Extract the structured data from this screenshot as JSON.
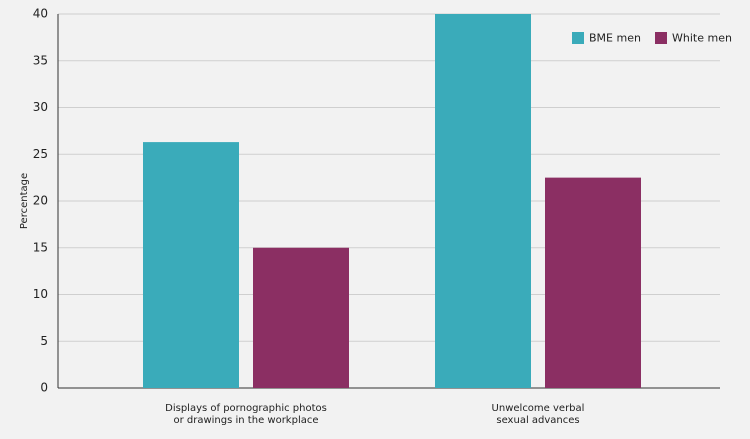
{
  "chart_data": {
    "type": "bar",
    "y_label": "Percentage",
    "categories": [
      [
        "Displays of pornographic photos",
        "or drawings in the workplace"
      ],
      [
        "Unwelcome verbal",
        "sexual advances"
      ]
    ],
    "series": [
      {
        "name": "BME men",
        "color": "#3aabba",
        "values": [
          26.3,
          40
        ]
      },
      {
        "name": "White men",
        "color": "#8b2f63",
        "values": [
          15,
          22.5
        ]
      }
    ],
    "ylim": [
      0,
      40
    ],
    "yticks": [
      0,
      5,
      10,
      15,
      20,
      25,
      30,
      35,
      40
    ],
    "grid": true,
    "legend": "top-right"
  }
}
